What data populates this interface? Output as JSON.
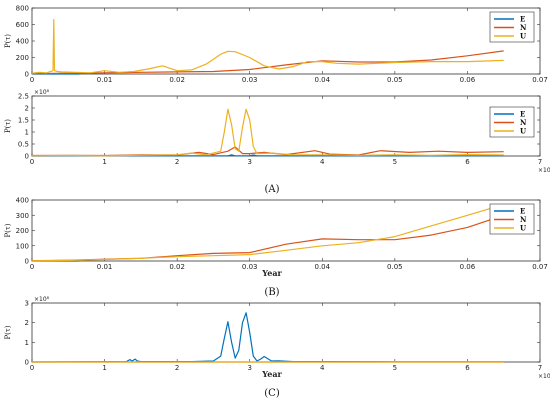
{
  "colors": {
    "E": "#0072BD",
    "N": "#D95319",
    "U": "#EDB120"
  },
  "panel_labels": [
    "(A)",
    "(B)",
    "(C)"
  ],
  "chart_data": [
    {
      "type": "line",
      "id": "A1",
      "xlim": [
        0,
        0.07
      ],
      "ylim": [
        0,
        800
      ],
      "xticks": [
        0,
        0.01,
        0.02,
        0.03,
        0.04,
        0.05,
        0.06,
        0.07
      ],
      "xtick_labels": [
        "0",
        "0.01",
        "0.02",
        "0.03",
        "0.04",
        "0.05",
        "0.06",
        "0.07"
      ],
      "yticks": [
        0,
        200,
        400,
        600,
        800
      ],
      "ytick_labels": [
        "0",
        "200",
        "400",
        "600",
        "800"
      ],
      "ylabel": "P(τ)",
      "xlabel": "",
      "legend": "top-right",
      "series": [
        {
          "name": "E",
          "x": [
            0,
            0.003,
            0.0065
          ],
          "y": [
            0,
            0,
            0
          ]
        },
        {
          "name": "N",
          "x": [
            0,
            0.005,
            0.01,
            0.015,
            0.02,
            0.025,
            0.03,
            0.035,
            0.04,
            0.045,
            0.05,
            0.055,
            0.06,
            0.065
          ],
          "y": [
            5,
            10,
            15,
            20,
            25,
            30,
            55,
            110,
            160,
            145,
            145,
            170,
            220,
            280
          ]
        },
        {
          "name": "U",
          "x": [
            0,
            0.001,
            0.002,
            0.0029,
            0.003,
            0.0031,
            0.0035,
            0.004,
            0.006,
            0.008,
            0.01,
            0.012,
            0.014,
            0.016,
            0.018,
            0.02,
            0.022,
            0.024,
            0.026,
            0.027,
            0.028,
            0.03,
            0.032,
            0.034,
            0.036,
            0.038,
            0.04,
            0.042,
            0.045,
            0.05,
            0.055,
            0.06,
            0.065
          ],
          "y": [
            10,
            20,
            15,
            40,
            660,
            40,
            30,
            25,
            20,
            15,
            40,
            20,
            30,
            60,
            100,
            40,
            50,
            120,
            240,
            275,
            270,
            200,
            100,
            60,
            90,
            150,
            150,
            130,
            120,
            140,
            150,
            150,
            165
          ]
        }
      ]
    },
    {
      "type": "line",
      "id": "A2",
      "xlim": [
        0,
        7
      ],
      "ylim": [
        0,
        2.5
      ],
      "xticks": [
        0,
        1,
        2,
        3,
        4,
        5,
        6,
        7
      ],
      "xtick_labels": [
        "0",
        "1",
        "2",
        "3",
        "4",
        "5",
        "6",
        "7"
      ],
      "yticks": [
        0,
        0.5,
        1,
        1.5,
        2,
        2.5
      ],
      "ytick_labels": [
        "0",
        "0.5",
        "1",
        "1.5",
        "2",
        "2.5"
      ],
      "y_exponent": "×10⁸",
      "x_exponent": "×10⁻³",
      "ylabel": "P(τ)",
      "xlabel": "",
      "legend": "right",
      "series": [
        {
          "name": "E",
          "x": [
            0,
            1,
            2,
            2.7,
            2.75,
            2.8,
            3.0,
            3.05,
            3.1,
            4,
            5,
            6.5
          ],
          "y": [
            0,
            0.01,
            0.01,
            0.01,
            0.05,
            0.01,
            0.01,
            0.04,
            0.01,
            0.01,
            0.01,
            0.01
          ]
        },
        {
          "name": "N",
          "x": [
            0,
            0.5,
            1,
            1.5,
            2,
            2.3,
            2.5,
            2.7,
            2.8,
            2.9,
            3.0,
            3.2,
            3.5,
            3.9,
            4.1,
            4.5,
            4.8,
            5.2,
            5.6,
            6.0,
            6.5
          ],
          "y": [
            0.02,
            0.03,
            0.02,
            0.05,
            0.04,
            0.15,
            0.06,
            0.2,
            0.38,
            0.1,
            0.1,
            0.15,
            0.06,
            0.22,
            0.08,
            0.04,
            0.22,
            0.15,
            0.2,
            0.15,
            0.18
          ]
        },
        {
          "name": "U",
          "x": [
            0,
            0.5,
            1,
            1.5,
            2,
            2.2,
            2.4,
            2.6,
            2.65,
            2.7,
            2.75,
            2.8,
            2.85,
            2.9,
            2.95,
            3.0,
            3.05,
            3.1,
            3.3,
            3.6,
            4,
            4.5,
            5,
            5.5,
            6,
            6.5
          ],
          "y": [
            0.01,
            0.02,
            0.01,
            0.03,
            0.05,
            0.12,
            0.05,
            0.2,
            1.0,
            1.95,
            1.3,
            0.3,
            0.2,
            1.2,
            1.95,
            1.5,
            0.4,
            0.1,
            0.12,
            0.05,
            0.05,
            0.03,
            0.05,
            0.03,
            0.06,
            0.04
          ]
        }
      ]
    },
    {
      "type": "line",
      "id": "B",
      "xlim": [
        0,
        0.07
      ],
      "ylim": [
        0,
        400
      ],
      "xticks": [
        0,
        0.01,
        0.02,
        0.03,
        0.04,
        0.05,
        0.06,
        0.07
      ],
      "xtick_labels": [
        "0",
        "0.01",
        "0.02",
        "0.03",
        "0.04",
        "0.05",
        "0.06",
        "0.07"
      ],
      "yticks": [
        0,
        100,
        200,
        300,
        400
      ],
      "ytick_labels": [
        "0",
        "100",
        "200",
        "300",
        "400"
      ],
      "ylabel": "P(τ)",
      "xlabel": "Year",
      "legend": "top-right",
      "series": [
        {
          "name": "E",
          "x": [
            0,
            0.003,
            0.0065
          ],
          "y": [
            0,
            0,
            0
          ]
        },
        {
          "name": "N",
          "x": [
            0,
            0.005,
            0.01,
            0.015,
            0.02,
            0.025,
            0.03,
            0.035,
            0.04,
            0.045,
            0.05,
            0.055,
            0.06,
            0.065
          ],
          "y": [
            2,
            5,
            12,
            18,
            35,
            50,
            55,
            110,
            145,
            140,
            140,
            170,
            220,
            300
          ]
        },
        {
          "name": "U",
          "x": [
            0,
            0.005,
            0.01,
            0.015,
            0.02,
            0.025,
            0.03,
            0.035,
            0.04,
            0.045,
            0.05,
            0.055,
            0.06,
            0.065
          ],
          "y": [
            1,
            4,
            10,
            18,
            28,
            35,
            42,
            70,
            100,
            120,
            160,
            230,
            300,
            370
          ]
        }
      ]
    },
    {
      "type": "line",
      "id": "C",
      "xlim": [
        0,
        7
      ],
      "ylim": [
        0,
        3
      ],
      "xticks": [
        0,
        1,
        2,
        3,
        4,
        5,
        6,
        7
      ],
      "xtick_labels": [
        "0",
        "1",
        "2",
        "3",
        "4",
        "5",
        "6",
        "7"
      ],
      "yticks": [
        0,
        1,
        2,
        3
      ],
      "ytick_labels": [
        "0",
        "1",
        "2",
        "3"
      ],
      "y_exponent": "×10⁸",
      "x_exponent": "×10⁻³",
      "ylabel": "P(τ)",
      "xlabel": "Year",
      "legend": "none",
      "series": [
        {
          "name": "E",
          "x": [
            0,
            1.3,
            1.35,
            1.38,
            1.42,
            1.45,
            1.5,
            2.2,
            2.5,
            2.6,
            2.65,
            2.7,
            2.75,
            2.8,
            2.85,
            2.9,
            2.95,
            3.0,
            3.05,
            3.1,
            3.15,
            3.2,
            3.3,
            3.4,
            3.6,
            4,
            5,
            6,
            6.5
          ],
          "y": [
            0,
            0.02,
            0.12,
            0.05,
            0.15,
            0.05,
            0.02,
            0.02,
            0.05,
            0.3,
            1.2,
            2.05,
            1.0,
            0.2,
            0.6,
            2.0,
            2.5,
            1.5,
            0.3,
            0.05,
            0.15,
            0.28,
            0.05,
            0.06,
            0.02,
            0.02,
            0.01,
            0.01,
            0.01
          ]
        },
        {
          "name": "N",
          "x": [
            0,
            6.5
          ],
          "y": [
            0,
            0
          ]
        },
        {
          "name": "U",
          "x": [
            0,
            6.5
          ],
          "y": [
            0,
            0
          ]
        }
      ]
    }
  ]
}
